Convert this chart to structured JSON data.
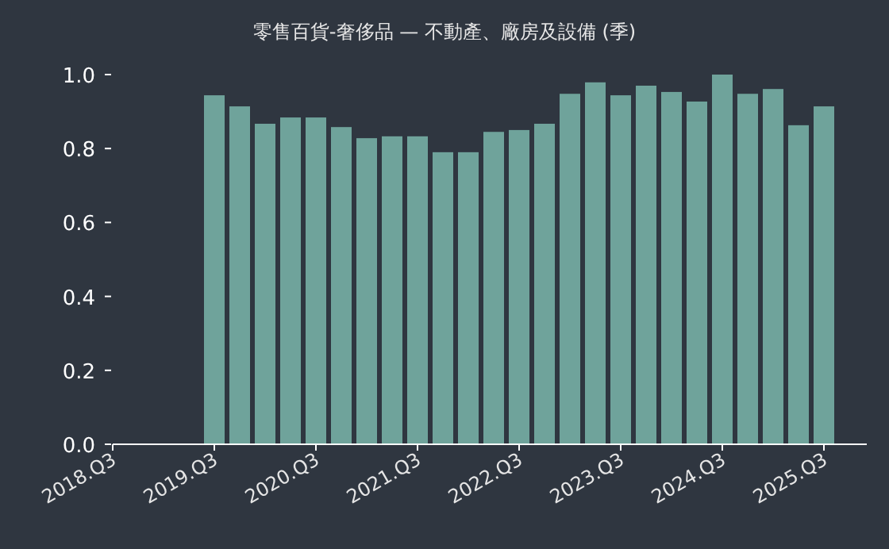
{
  "chart_data": {
    "type": "bar",
    "title": "零售百貨-奢侈品 — 不動產、廠房及設備 (季)",
    "categories": [
      "2018.Q3",
      null,
      null,
      null,
      "2019.Q3",
      null,
      null,
      null,
      "2020.Q3",
      null,
      null,
      null,
      "2021.Q3",
      null,
      null,
      null,
      "2022.Q3",
      null,
      null,
      null,
      "2023.Q3",
      null,
      null,
      null,
      "2024.Q3",
      null,
      null,
      null,
      "2025.Q3"
    ],
    "values": [
      null,
      null,
      null,
      null,
      0.944,
      0.914,
      0.867,
      0.884,
      0.884,
      0.858,
      0.828,
      0.833,
      0.833,
      0.79,
      0.79,
      0.845,
      0.85,
      0.867,
      0.948,
      0.979,
      0.944,
      0.97,
      0.953,
      0.927,
      1.0,
      0.948,
      0.961,
      0.863,
      0.914
    ],
    "color": "#6fa39b",
    "ylim": [
      0,
      1.0
    ],
    "yticks": [
      {
        "value": 0,
        "label": "0.0"
      },
      {
        "value": 0.2,
        "label": "0.2"
      },
      {
        "value": 0.4,
        "label": "0.4"
      },
      {
        "value": 0.6,
        "label": "0.6"
      },
      {
        "value": 0.8,
        "label": "0.8"
      },
      {
        "value": 1.0,
        "label": "1.0"
      }
    ],
    "grid": false
  }
}
